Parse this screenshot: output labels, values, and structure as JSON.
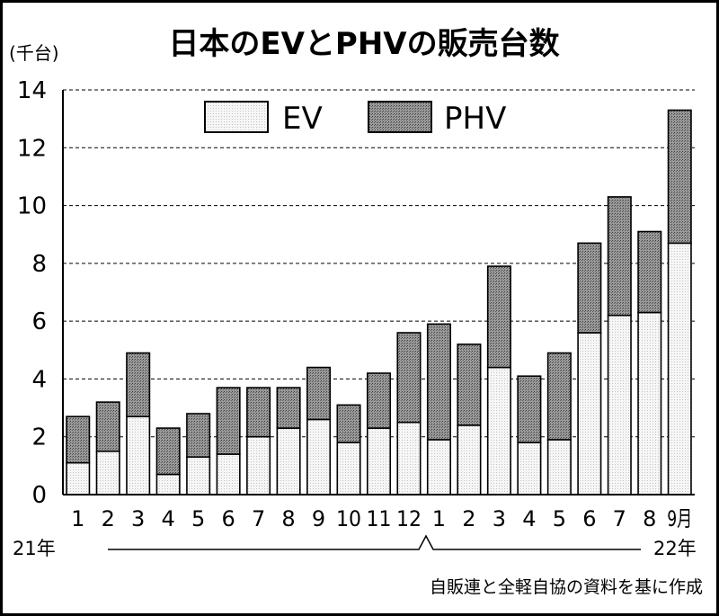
{
  "chart_data": {
    "type": "bar",
    "stacked": true,
    "title": "日本のEVとPHVの販売台数",
    "unit_label": "(千台)",
    "categories": [
      "1",
      "2",
      "3",
      "4",
      "5",
      "6",
      "7",
      "8",
      "9",
      "10",
      "11",
      "12",
      "1",
      "2",
      "3",
      "4",
      "5",
      "6",
      "7",
      "8",
      "9月"
    ],
    "series": [
      {
        "name": "EV",
        "values": [
          1.1,
          1.5,
          2.7,
          0.7,
          1.3,
          1.4,
          2.0,
          2.3,
          2.6,
          1.8,
          2.3,
          2.5,
          1.9,
          2.4,
          4.4,
          1.8,
          1.9,
          5.6,
          6.2,
          6.3,
          8.7
        ]
      },
      {
        "name": "PHV",
        "values": [
          1.6,
          1.7,
          2.2,
          1.6,
          1.5,
          2.3,
          1.7,
          1.4,
          1.8,
          1.3,
          1.9,
          3.1,
          4.0,
          2.8,
          3.5,
          2.3,
          3.0,
          3.1,
          4.1,
          2.8,
          4.6
        ]
      }
    ],
    "ylim": [
      0,
      14
    ],
    "yticks": [
      "0",
      "2",
      "4",
      "6",
      "8",
      "10",
      "12",
      "14"
    ],
    "grid": true,
    "legend_position": "top",
    "year_labels": {
      "start": "21年",
      "end": "22年"
    },
    "source_note": "自販連と全軽自協の資料を基に作成",
    "colors": {
      "EV": "#efefef",
      "PHV": "#888888",
      "axis": "#000000"
    }
  }
}
